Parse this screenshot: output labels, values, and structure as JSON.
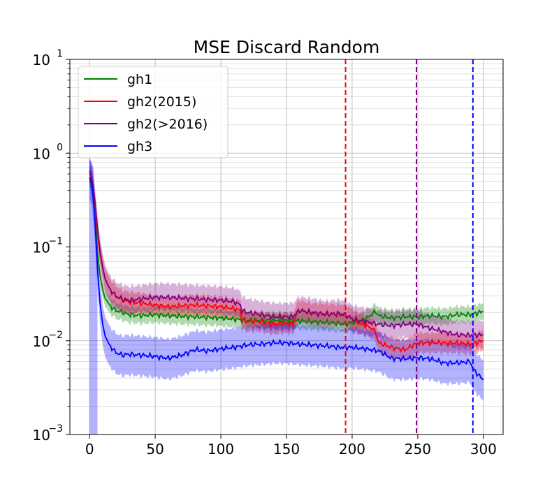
{
  "chart_data": {
    "type": "line",
    "title": "MSE Discard Random",
    "xlabel": "",
    "ylabel": "",
    "yscale": "log",
    "xlim": [
      -15,
      315
    ],
    "ylim": [
      0.001,
      10
    ],
    "x_ticks": [
      0,
      50,
      100,
      150,
      200,
      250,
      300
    ],
    "x_tick_labels": [
      "0",
      "50",
      "100",
      "150",
      "200",
      "250",
      "300"
    ],
    "y_ticks": [
      {
        "value": 0.001,
        "base": "10",
        "exp": "−3"
      },
      {
        "value": 0.01,
        "base": "10",
        "exp": "−2"
      },
      {
        "value": 0.1,
        "base": "10",
        "exp": "−1"
      },
      {
        "value": 1,
        "base": "10",
        "exp": "0"
      },
      {
        "value": 10,
        "base": "10",
        "exp": "1"
      }
    ],
    "grid": true,
    "legend_position": "top-left",
    "series": [
      {
        "name": "gh1",
        "color": "#008000",
        "points": [
          [
            0,
            0.55
          ],
          [
            2,
            0.42
          ],
          [
            4,
            0.25
          ],
          [
            6,
            0.09
          ],
          [
            8,
            0.05
          ],
          [
            10,
            0.035
          ],
          [
            12,
            0.028
          ],
          [
            15,
            0.024
          ],
          [
            20,
            0.021
          ],
          [
            25,
            0.02
          ],
          [
            30,
            0.019
          ],
          [
            40,
            0.0185
          ],
          [
            50,
            0.019
          ],
          [
            60,
            0.0185
          ],
          [
            80,
            0.018
          ],
          [
            100,
            0.0175
          ],
          [
            110,
            0.017
          ],
          [
            120,
            0.0165
          ],
          [
            150,
            0.0165
          ],
          [
            170,
            0.016
          ],
          [
            195,
            0.0152
          ],
          [
            205,
            0.016
          ],
          [
            210,
            0.017
          ],
          [
            218,
            0.0205
          ],
          [
            220,
            0.0185
          ],
          [
            230,
            0.0175
          ],
          [
            240,
            0.018
          ],
          [
            250,
            0.018
          ],
          [
            260,
            0.0185
          ],
          [
            270,
            0.018
          ],
          [
            280,
            0.019
          ],
          [
            290,
            0.019
          ],
          [
            300,
            0.0205
          ]
        ],
        "band": [
          0.82,
          1.22
        ]
      },
      {
        "name": "gh2(2015)",
        "color": "#ff0000",
        "points": [
          [
            0,
            0.6
          ],
          [
            2,
            0.5
          ],
          [
            4,
            0.3
          ],
          [
            6,
            0.14
          ],
          [
            8,
            0.085
          ],
          [
            10,
            0.06
          ],
          [
            12,
            0.045
          ],
          [
            15,
            0.036
          ],
          [
            20,
            0.03
          ],
          [
            25,
            0.027
          ],
          [
            30,
            0.026
          ],
          [
            40,
            0.025
          ],
          [
            50,
            0.024
          ],
          [
            60,
            0.023
          ],
          [
            80,
            0.024
          ],
          [
            100,
            0.023
          ],
          [
            110,
            0.022
          ],
          [
            115,
            0.021
          ],
          [
            116,
            0.017
          ],
          [
            120,
            0.016
          ],
          [
            130,
            0.016
          ],
          [
            140,
            0.015
          ],
          [
            150,
            0.0155
          ],
          [
            155,
            0.015
          ],
          [
            158,
            0.02
          ],
          [
            160,
            0.021
          ],
          [
            170,
            0.0195
          ],
          [
            180,
            0.0195
          ],
          [
            190,
            0.019
          ],
          [
            195,
            0.019
          ],
          [
            200,
            0.017
          ],
          [
            205,
            0.0155
          ],
          [
            210,
            0.0145
          ],
          [
            215,
            0.0135
          ],
          [
            218,
            0.0125
          ],
          [
            220,
            0.0095
          ],
          [
            230,
            0.0085
          ],
          [
            240,
            0.008
          ],
          [
            250,
            0.0095
          ],
          [
            260,
            0.0095
          ],
          [
            270,
            0.0095
          ],
          [
            280,
            0.0095
          ],
          [
            290,
            0.0092
          ],
          [
            300,
            0.01
          ]
        ],
        "band": [
          0.78,
          1.28
        ]
      },
      {
        "name": "gh2(>2016)",
        "color": "#800080",
        "points": [
          [
            0,
            0.65
          ],
          [
            2,
            0.5
          ],
          [
            4,
            0.32
          ],
          [
            6,
            0.16
          ],
          [
            8,
            0.09
          ],
          [
            10,
            0.06
          ],
          [
            12,
            0.045
          ],
          [
            15,
            0.036
          ],
          [
            20,
            0.03
          ],
          [
            25,
            0.028
          ],
          [
            30,
            0.027
          ],
          [
            40,
            0.028
          ],
          [
            50,
            0.029
          ],
          [
            60,
            0.029
          ],
          [
            80,
            0.028
          ],
          [
            100,
            0.027
          ],
          [
            110,
            0.026
          ],
          [
            115,
            0.024
          ],
          [
            116,
            0.021
          ],
          [
            120,
            0.02
          ],
          [
            130,
            0.019
          ],
          [
            140,
            0.018
          ],
          [
            150,
            0.018
          ],
          [
            155,
            0.018
          ],
          [
            158,
            0.02
          ],
          [
            160,
            0.021
          ],
          [
            170,
            0.02
          ],
          [
            180,
            0.019
          ],
          [
            190,
            0.0195
          ],
          [
            195,
            0.019
          ],
          [
            200,
            0.017
          ],
          [
            210,
            0.016
          ],
          [
            220,
            0.015
          ],
          [
            230,
            0.0145
          ],
          [
            240,
            0.015
          ],
          [
            250,
            0.015
          ],
          [
            260,
            0.0135
          ],
          [
            270,
            0.0125
          ],
          [
            280,
            0.0115
          ],
          [
            290,
            0.0115
          ],
          [
            300,
            0.0115
          ]
        ],
        "band": [
          0.72,
          1.4
        ]
      },
      {
        "name": "gh3",
        "color": "#0000ff",
        "points": [
          [
            0,
            0.55
          ],
          [
            2,
            0.45
          ],
          [
            4,
            0.2
          ],
          [
            6,
            0.06
          ],
          [
            8,
            0.025
          ],
          [
            10,
            0.015
          ],
          [
            12,
            0.011
          ],
          [
            15,
            0.009
          ],
          [
            20,
            0.0075
          ],
          [
            25,
            0.007
          ],
          [
            30,
            0.0072
          ],
          [
            40,
            0.007
          ],
          [
            50,
            0.0068
          ],
          [
            60,
            0.0065
          ],
          [
            70,
            0.007
          ],
          [
            80,
            0.008
          ],
          [
            90,
            0.0078
          ],
          [
            100,
            0.0082
          ],
          [
            110,
            0.0085
          ],
          [
            120,
            0.009
          ],
          [
            130,
            0.0092
          ],
          [
            140,
            0.0095
          ],
          [
            150,
            0.0095
          ],
          [
            160,
            0.0092
          ],
          [
            170,
            0.009
          ],
          [
            180,
            0.0088
          ],
          [
            190,
            0.0085
          ],
          [
            200,
            0.0085
          ],
          [
            210,
            0.0082
          ],
          [
            220,
            0.0078
          ],
          [
            230,
            0.0065
          ],
          [
            240,
            0.0064
          ],
          [
            250,
            0.0066
          ],
          [
            260,
            0.0064
          ],
          [
            270,
            0.0058
          ],
          [
            280,
            0.0058
          ],
          [
            290,
            0.006
          ],
          [
            292,
            0.005
          ],
          [
            295,
            0.0045
          ],
          [
            300,
            0.0038
          ]
        ],
        "band": [
          0.6,
          1.6
        ]
      }
    ],
    "vlines": [
      {
        "x": 195,
        "color": "#ff0000",
        "style": "dashed"
      },
      {
        "x": 249,
        "color": "#800080",
        "style": "dashed"
      },
      {
        "x": 292,
        "color": "#0000ff",
        "style": "dashed"
      }
    ]
  }
}
